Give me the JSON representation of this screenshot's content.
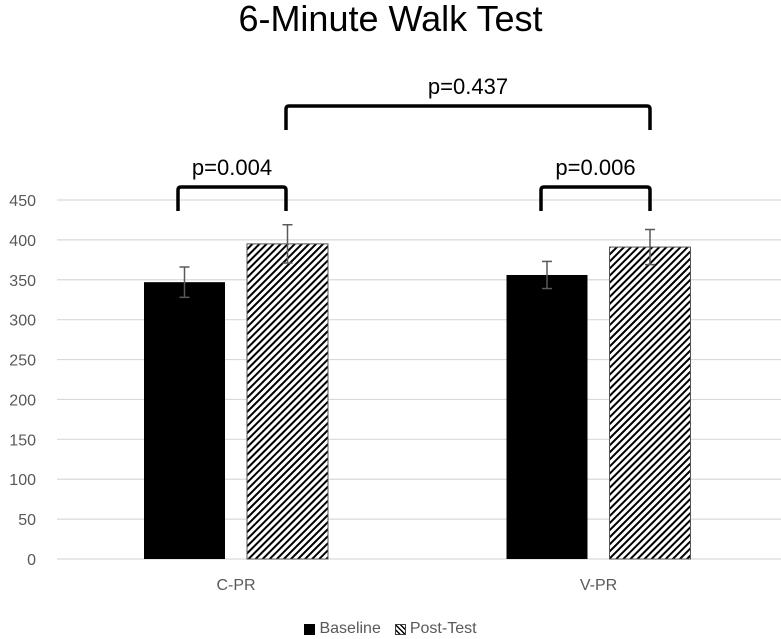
{
  "chart_data": {
    "type": "bar",
    "title": "6-Minute Walk Test",
    "xlabel": "",
    "ylabel": "",
    "ylim": [
      0,
      450
    ],
    "yticks": [
      0,
      50,
      100,
      150,
      200,
      250,
      300,
      350,
      400,
      450
    ],
    "grid": true,
    "legend_position": "bottom",
    "categories": [
      "C-PR",
      "V-PR"
    ],
    "series": [
      {
        "name": "Baseline",
        "values": [
          347,
          356
        ],
        "errors": [
          19,
          17
        ],
        "fill": "solid-black"
      },
      {
        "name": "Post-Test",
        "values": [
          395,
          391
        ],
        "errors": [
          24,
          22
        ],
        "fill": "diagonal-hatch"
      }
    ],
    "annotations": [
      {
        "label": "p=0.004",
        "from": "C-PR Baseline",
        "to": "C-PR Post-Test"
      },
      {
        "label": "p=0.006",
        "from": "V-PR Baseline",
        "to": "V-PR Post-Test"
      },
      {
        "label": "p=0.437",
        "from": "C-PR Post-Test",
        "to": "V-PR Post-Test"
      }
    ]
  },
  "title": "6-Minute Walk Test",
  "categories": [
    "C-PR",
    "V-PR"
  ],
  "yticks": [
    "0",
    "50",
    "100",
    "150",
    "200",
    "250",
    "300",
    "350",
    "400",
    "450"
  ],
  "pvalues": {
    "cpr": "p=0.004",
    "vpr": "p=0.006",
    "between": "p=0.437"
  },
  "legend": {
    "baseline": "Baseline",
    "post": "Post-Test"
  },
  "colors": {
    "baseline": "#000000",
    "grid": "#d9d9d9",
    "axis_text": "#595959",
    "errorbar": "#595959"
  }
}
